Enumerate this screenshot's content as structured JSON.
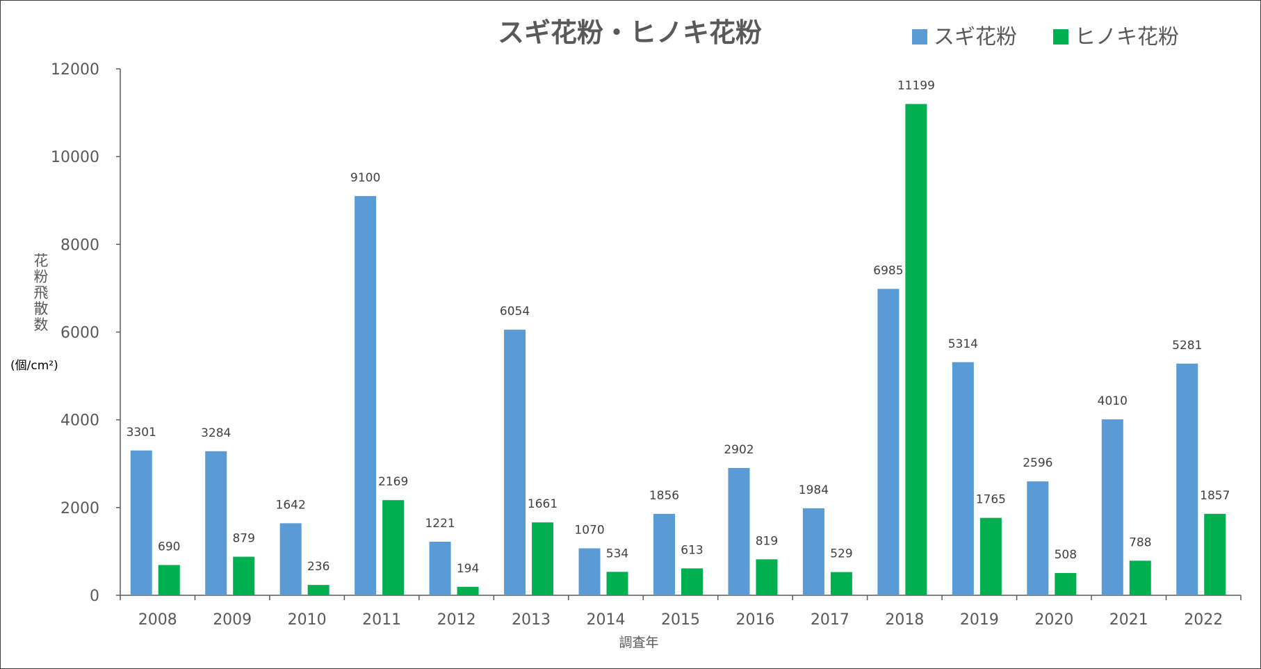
{
  "chart_data": {
    "type": "bar",
    "title": "スギ花粉・ヒノキ花粉",
    "xlabel": "調査年",
    "ylabel": "花粉飛散数",
    "ylabel_unit": "(個/cm²)",
    "ylim": [
      0,
      12000
    ],
    "yticks": [
      0,
      2000,
      4000,
      6000,
      8000,
      10000,
      12000
    ],
    "grid": false,
    "legend_position": "top-right",
    "categories": [
      "2008",
      "2009",
      "2010",
      "2011",
      "2012",
      "2013",
      "2014",
      "2015",
      "2016",
      "2017",
      "2018",
      "2019",
      "2020",
      "2021",
      "2022"
    ],
    "series": [
      {
        "name": "スギ花粉",
        "color": "#5b9bd5",
        "values": [
          3301,
          3284,
          1642,
          9100,
          1221,
          6054,
          1070,
          1856,
          2902,
          1984,
          6985,
          5314,
          2596,
          4010,
          5281
        ]
      },
      {
        "name": "ヒノキ花粉",
        "color": "#00b050",
        "values": [
          690,
          879,
          236,
          2169,
          194,
          1661,
          534,
          613,
          819,
          529,
          11199,
          1765,
          508,
          788,
          1857
        ]
      }
    ]
  }
}
